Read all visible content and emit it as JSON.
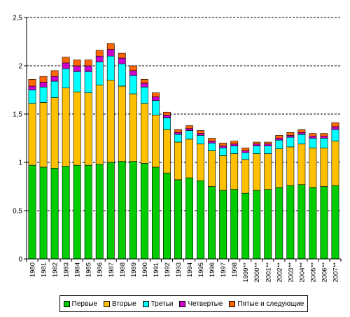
{
  "chart_data": {
    "type": "bar",
    "stacked": true,
    "categories": [
      "1980",
      "1981",
      "1982",
      "1983",
      "1984",
      "1985",
      "1986",
      "1987",
      "1988",
      "1989",
      "1990",
      "1991",
      "1992",
      "1993",
      "1994",
      "1995",
      "1996",
      "1997",
      "1998",
      "1999**",
      "2000**",
      "2001**",
      "2002**",
      "2003**",
      "2004**",
      "2005**",
      "2006**",
      "2007**"
    ],
    "ylim": [
      0,
      2.5
    ],
    "yticks": [
      "0",
      "0,5",
      "1",
      "1,5",
      "2",
      "2,5"
    ],
    "grid": true,
    "legend_position": "bottom",
    "series": [
      {
        "name": "Первые",
        "color": "#00cc00",
        "values": [
          0.97,
          0.95,
          0.94,
          0.96,
          0.97,
          0.97,
          0.98,
          1.0,
          1.01,
          1.01,
          0.99,
          0.95,
          0.89,
          0.82,
          0.84,
          0.81,
          0.75,
          0.71,
          0.72,
          0.68,
          0.71,
          0.72,
          0.74,
          0.76,
          0.77,
          0.74,
          0.75,
          0.76
        ]
      },
      {
        "name": "Вторые",
        "color": "#ffc000",
        "values": [
          0.64,
          0.67,
          0.73,
          0.81,
          0.76,
          0.75,
          0.82,
          0.85,
          0.78,
          0.7,
          0.62,
          0.54,
          0.45,
          0.39,
          0.4,
          0.38,
          0.37,
          0.36,
          0.37,
          0.35,
          0.38,
          0.37,
          0.4,
          0.4,
          0.42,
          0.41,
          0.4,
          0.46
        ]
      },
      {
        "name": "Третьи",
        "color": "#00ffff",
        "values": [
          0.14,
          0.16,
          0.17,
          0.2,
          0.21,
          0.22,
          0.24,
          0.25,
          0.23,
          0.19,
          0.17,
          0.15,
          0.12,
          0.08,
          0.09,
          0.09,
          0.08,
          0.08,
          0.08,
          0.07,
          0.08,
          0.08,
          0.09,
          0.1,
          0.1,
          0.1,
          0.1,
          0.12
        ]
      },
      {
        "name": "Четвертые",
        "color": "#cc00cc",
        "values": [
          0.04,
          0.05,
          0.05,
          0.06,
          0.06,
          0.06,
          0.06,
          0.07,
          0.06,
          0.05,
          0.04,
          0.04,
          0.03,
          0.02,
          0.02,
          0.02,
          0.02,
          0.02,
          0.02,
          0.02,
          0.02,
          0.02,
          0.02,
          0.02,
          0.02,
          0.02,
          0.02,
          0.03
        ]
      },
      {
        "name": "Пятые и следующие",
        "color": "#ff6600",
        "values": [
          0.07,
          0.06,
          0.06,
          0.06,
          0.06,
          0.06,
          0.06,
          0.06,
          0.05,
          0.05,
          0.04,
          0.04,
          0.03,
          0.03,
          0.03,
          0.03,
          0.03,
          0.03,
          0.03,
          0.03,
          0.02,
          0.02,
          0.03,
          0.03,
          0.03,
          0.03,
          0.03,
          0.04
        ]
      }
    ]
  }
}
